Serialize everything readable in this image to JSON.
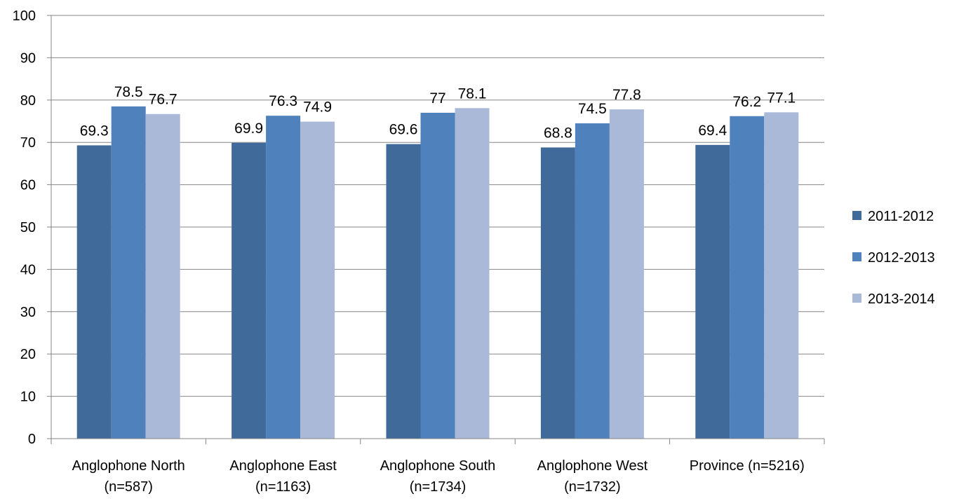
{
  "chart_data": {
    "type": "bar",
    "title": "",
    "xlabel": "",
    "ylabel": "",
    "ylim": [
      0,
      100
    ],
    "yticks": [
      0,
      10,
      20,
      30,
      40,
      50,
      60,
      70,
      80,
      90,
      100
    ],
    "grid": true,
    "legend_position": "right",
    "categories": [
      [
        "Anglophone North",
        "(n=587)"
      ],
      [
        "Anglophone East",
        "(n=1163)"
      ],
      [
        "Anglophone South",
        "(n=1734)"
      ],
      [
        "Anglophone West",
        "(n=1732)"
      ],
      [
        "Province (n=5216)",
        ""
      ]
    ],
    "series": [
      {
        "name": "2011-2012",
        "color": "#3f6a9a",
        "values": [
          69.3,
          69.9,
          69.6,
          68.8,
          69.4
        ]
      },
      {
        "name": "2012-2013",
        "color": "#4f81bd",
        "values": [
          78.5,
          76.3,
          77,
          74.5,
          76.2
        ]
      },
      {
        "name": "2013-2014",
        "color": "#aab9d8",
        "values": [
          76.7,
          74.9,
          78.1,
          77.8,
          77.1
        ]
      }
    ]
  }
}
